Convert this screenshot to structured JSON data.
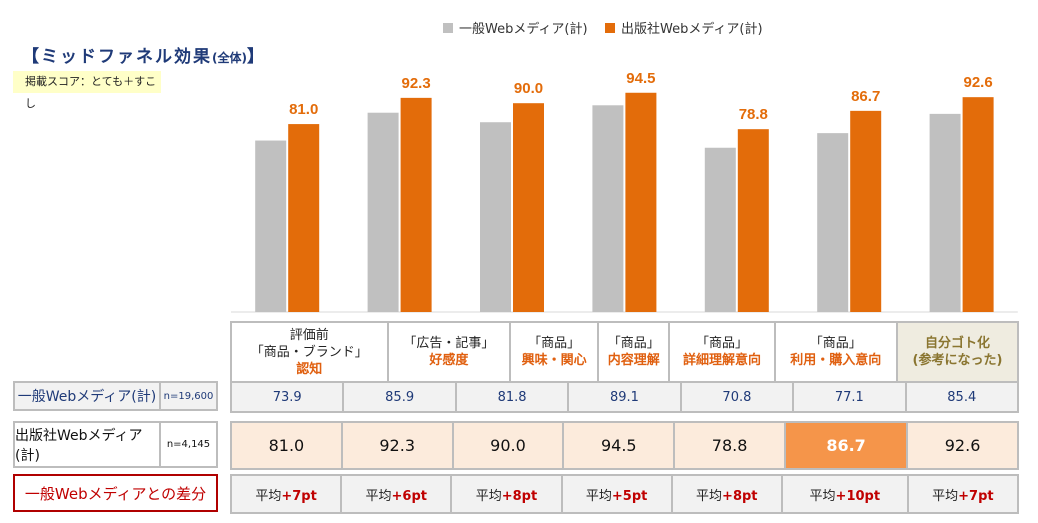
{
  "title": "【ミッドファネル効果",
  "title_sub": "(全体)",
  "title_end": "】",
  "score_note": "掲載スコア：とても＋すこし",
  "colors": {
    "general": "#c0c0c0",
    "publisher": "#e36c0a"
  },
  "chart_data": {
    "type": "bar",
    "categories": [
      "認知",
      "好感度",
      "興味・関心",
      "内容理解",
      "詳細理解意向",
      "利用・購入意向",
      "自分ゴト化"
    ],
    "series": [
      {
        "name": "一般Webメディア(計)",
        "values": [
          73.9,
          85.9,
          81.8,
          89.1,
          70.8,
          77.1,
          85.4
        ]
      },
      {
        "name": "出版社Webメディア(計)",
        "values": [
          81.0,
          92.3,
          90.0,
          94.5,
          78.8,
          86.7,
          92.6
        ],
        "data_labels": [
          "81.0",
          "92.3",
          "90.0",
          "94.5",
          "78.8",
          "86.7",
          "92.6"
        ]
      }
    ],
    "ylim": [
      0,
      100
    ],
    "legend": "top"
  },
  "table": {
    "headers": [
      {
        "l1": "評価前",
        "l2": "「商品・ブランド」",
        "hl": "認知"
      },
      {
        "l1": "",
        "l2": "「広告・記事」",
        "hl": "好感度"
      },
      {
        "l1": "",
        "l2": "「商品」",
        "hl": "興味・関心"
      },
      {
        "l1": "",
        "l2": "「商品」",
        "hl": "内容理解"
      },
      {
        "l1": "",
        "l2": "「商品」",
        "hl": "詳細理解意向"
      },
      {
        "l1": "",
        "l2": "「商品」",
        "hl": "利用・購入意向"
      },
      {
        "l1": "",
        "l2": "自分ゴト化",
        "hl": "(参考になった)"
      }
    ],
    "general": {
      "label": "一般Webメディア(計)",
      "n": "n=19,600",
      "values": [
        "73.9",
        "85.9",
        "81.8",
        "89.1",
        "70.8",
        "77.1",
        "85.4"
      ]
    },
    "publisher": {
      "label": "出版社Webメディア(計)",
      "n": "n=4,145",
      "values": [
        "81.0",
        "92.3",
        "90.0",
        "94.5",
        "78.8",
        "86.7",
        "92.6"
      ]
    },
    "diff": {
      "label": "一般Webメディアとの差分",
      "prefix": "平均",
      "values": [
        "+7pt",
        "+6pt",
        "+8pt",
        "+5pt",
        "+8pt",
        "+10pt",
        "+7pt"
      ]
    }
  }
}
